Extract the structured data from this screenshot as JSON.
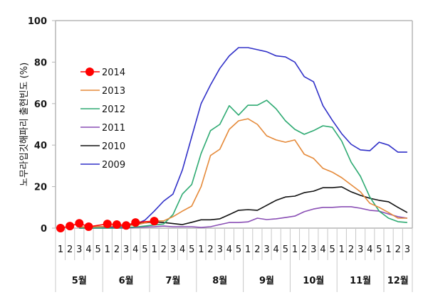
{
  "chart_data": {
    "type": "line",
    "title": "",
    "ylabel": "노무라입깃해파리 출현빈도 (%)",
    "xlabel": "",
    "ylim": [
      0,
      100
    ],
    "yticks": [
      0,
      20,
      40,
      60,
      80,
      100
    ],
    "grid": false,
    "legend_position": "top-left",
    "months": [
      {
        "label": "5월",
        "weeks": [
          "1",
          "2",
          "3",
          "4",
          "5"
        ]
      },
      {
        "label": "6월",
        "weeks": [
          "1",
          "2",
          "3",
          "4",
          "5"
        ]
      },
      {
        "label": "7월",
        "weeks": [
          "1",
          "2",
          "3",
          "4",
          "5"
        ]
      },
      {
        "label": "8월",
        "weeks": [
          "1",
          "2",
          "3",
          "4",
          "5"
        ]
      },
      {
        "label": "9월",
        "weeks": [
          "1",
          "2",
          "3",
          "4",
          "5"
        ]
      },
      {
        "label": "10월",
        "weeks": [
          "1",
          "2",
          "3",
          "4",
          "5"
        ]
      },
      {
        "label": "11월",
        "weeks": [
          "1",
          "2",
          "3",
          "4",
          "5"
        ]
      },
      {
        "label": "12월",
        "weeks": [
          "1",
          "2",
          "3"
        ]
      }
    ],
    "series": [
      {
        "name": "2014",
        "color": "#ff0000",
        "marker": "circle",
        "values": [
          0,
          1,
          2.3,
          0.7,
          null,
          2,
          1.7,
          1.3,
          2.7,
          null,
          3.4,
          null,
          null,
          null,
          null,
          null,
          null,
          null,
          null,
          null,
          null,
          null,
          null,
          null,
          null,
          null,
          null,
          null,
          null,
          null,
          null,
          null,
          null,
          null,
          null,
          null,
          null,
          null
        ]
      },
      {
        "name": "2013",
        "color": "#e58a3a",
        "marker": "none",
        "values": [
          null,
          null,
          0.5,
          0.5,
          0.7,
          0.8,
          1,
          1.2,
          1.5,
          2.5,
          3.5,
          3.5,
          5.5,
          8.2,
          10.6,
          20,
          35,
          38,
          47.6,
          51.7,
          52.7,
          50,
          44.5,
          42.5,
          41.4,
          42.5,
          35.6,
          33.6,
          28.8,
          27,
          24.3,
          20.9,
          17.5,
          12,
          10,
          7.5,
          4.8,
          4.8
        ]
      },
      {
        "name": "2012",
        "color": "#2eaa72",
        "marker": "none",
        "values": [
          null,
          null,
          0,
          0,
          0,
          0,
          0,
          0.3,
          0.5,
          1,
          1.5,
          2,
          6.5,
          16.4,
          21,
          36,
          47,
          50,
          59,
          54.5,
          59.2,
          59.2,
          61.6,
          57.5,
          51.7,
          47.6,
          45.2,
          47,
          49.3,
          48.6,
          42,
          31.8,
          25,
          15,
          8.2,
          4.8,
          3.1,
          2.7
        ]
      },
      {
        "name": "2011",
        "color": "#8a4fb5",
        "marker": "none",
        "values": [
          null,
          null,
          0,
          0,
          0,
          0,
          0,
          0,
          0.3,
          0.5,
          0.7,
          1,
          0.7,
          0.7,
          0.7,
          0.3,
          0.7,
          1.7,
          2.7,
          2.7,
          3,
          4.8,
          4.1,
          4.5,
          5.1,
          5.8,
          7.9,
          9.2,
          10,
          10,
          10.3,
          10.3,
          9.6,
          8.6,
          8.2,
          6.8,
          5.5,
          4.8
        ]
      },
      {
        "name": "2010",
        "color": "#111111",
        "marker": "none",
        "values": [
          null,
          null,
          0.5,
          0.5,
          0.7,
          0.8,
          1,
          1.5,
          2,
          2.5,
          3,
          2.7,
          2.2,
          1.7,
          2.8,
          4,
          4,
          4.5,
          6.5,
          8.6,
          8.9,
          8.6,
          11,
          13.4,
          15,
          15.4,
          17.1,
          17.8,
          19.5,
          19.5,
          19.9,
          17.5,
          15.8,
          14.4,
          13.4,
          12.7,
          10,
          7.5
        ]
      },
      {
        "name": "2009",
        "color": "#3030c8",
        "marker": "none",
        "values": [
          null,
          null,
          0,
          0,
          0,
          0.3,
          0.5,
          1,
          2,
          3.8,
          8.2,
          13,
          16.4,
          28,
          44,
          60,
          69,
          77,
          83,
          87,
          87,
          86,
          85,
          83,
          82.5,
          80,
          73,
          70.5,
          59,
          52,
          45.5,
          40.4,
          37.7,
          37.3,
          41.4,
          40,
          36.6,
          36.6
        ]
      }
    ]
  }
}
